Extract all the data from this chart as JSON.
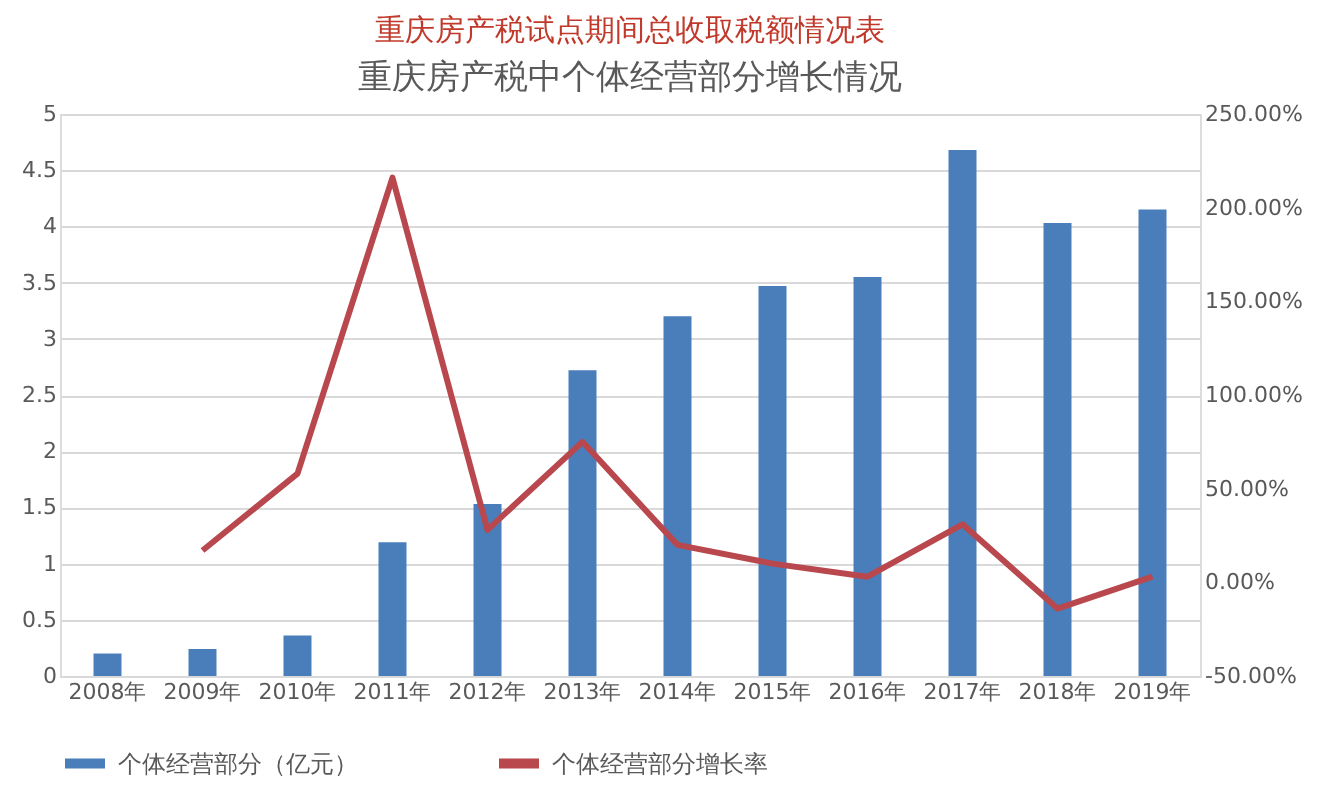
{
  "chart_data": {
    "type": "bar",
    "title": "重庆房产税试点期间总收取税额情况表",
    "subtitle": "重庆房产税中个体经营部分增长情况",
    "categories": [
      "2008年",
      "2009年",
      "2010年",
      "2011年",
      "2012年",
      "2013年",
      "2014年",
      "2015年",
      "2016年",
      "2017年",
      "2018年",
      "2019年"
    ],
    "series": [
      {
        "name": "个体经营部分（亿元）",
        "color": "#4a7ebb",
        "values": [
          0.2,
          0.24,
          0.36,
          1.19,
          1.53,
          2.72,
          3.2,
          3.47,
          3.55,
          4.68,
          4.03,
          4.15
        ]
      },
      {
        "name": "个体经营部分增长率",
        "type": "line",
        "axis": "y2",
        "color": "#b9484e",
        "values": [
          null,
          17,
          58,
          216,
          28,
          75,
          20,
          10,
          3,
          31,
          -14,
          3
        ]
      }
    ],
    "ylim": [
      0,
      5
    ],
    "yticks": [
      0,
      0.5,
      1,
      1.5,
      2,
      2.5,
      3,
      3.5,
      4,
      4.5,
      5
    ],
    "y2lim": [
      -50,
      250
    ],
    "y2ticks": [
      {
        "value": -50,
        "label": "-50.00%"
      },
      {
        "value": 0,
        "label": "0.00%"
      },
      {
        "value": 50,
        "label": "50.00%"
      },
      {
        "value": 100,
        "label": "100.00%"
      },
      {
        "value": 150,
        "label": "150.00%"
      },
      {
        "value": 200,
        "label": "200.00%"
      },
      {
        "value": 250,
        "label": "250.00%"
      }
    ],
    "grid": "y",
    "legend": "bottom",
    "marker": "none",
    "line_style": "solid"
  }
}
